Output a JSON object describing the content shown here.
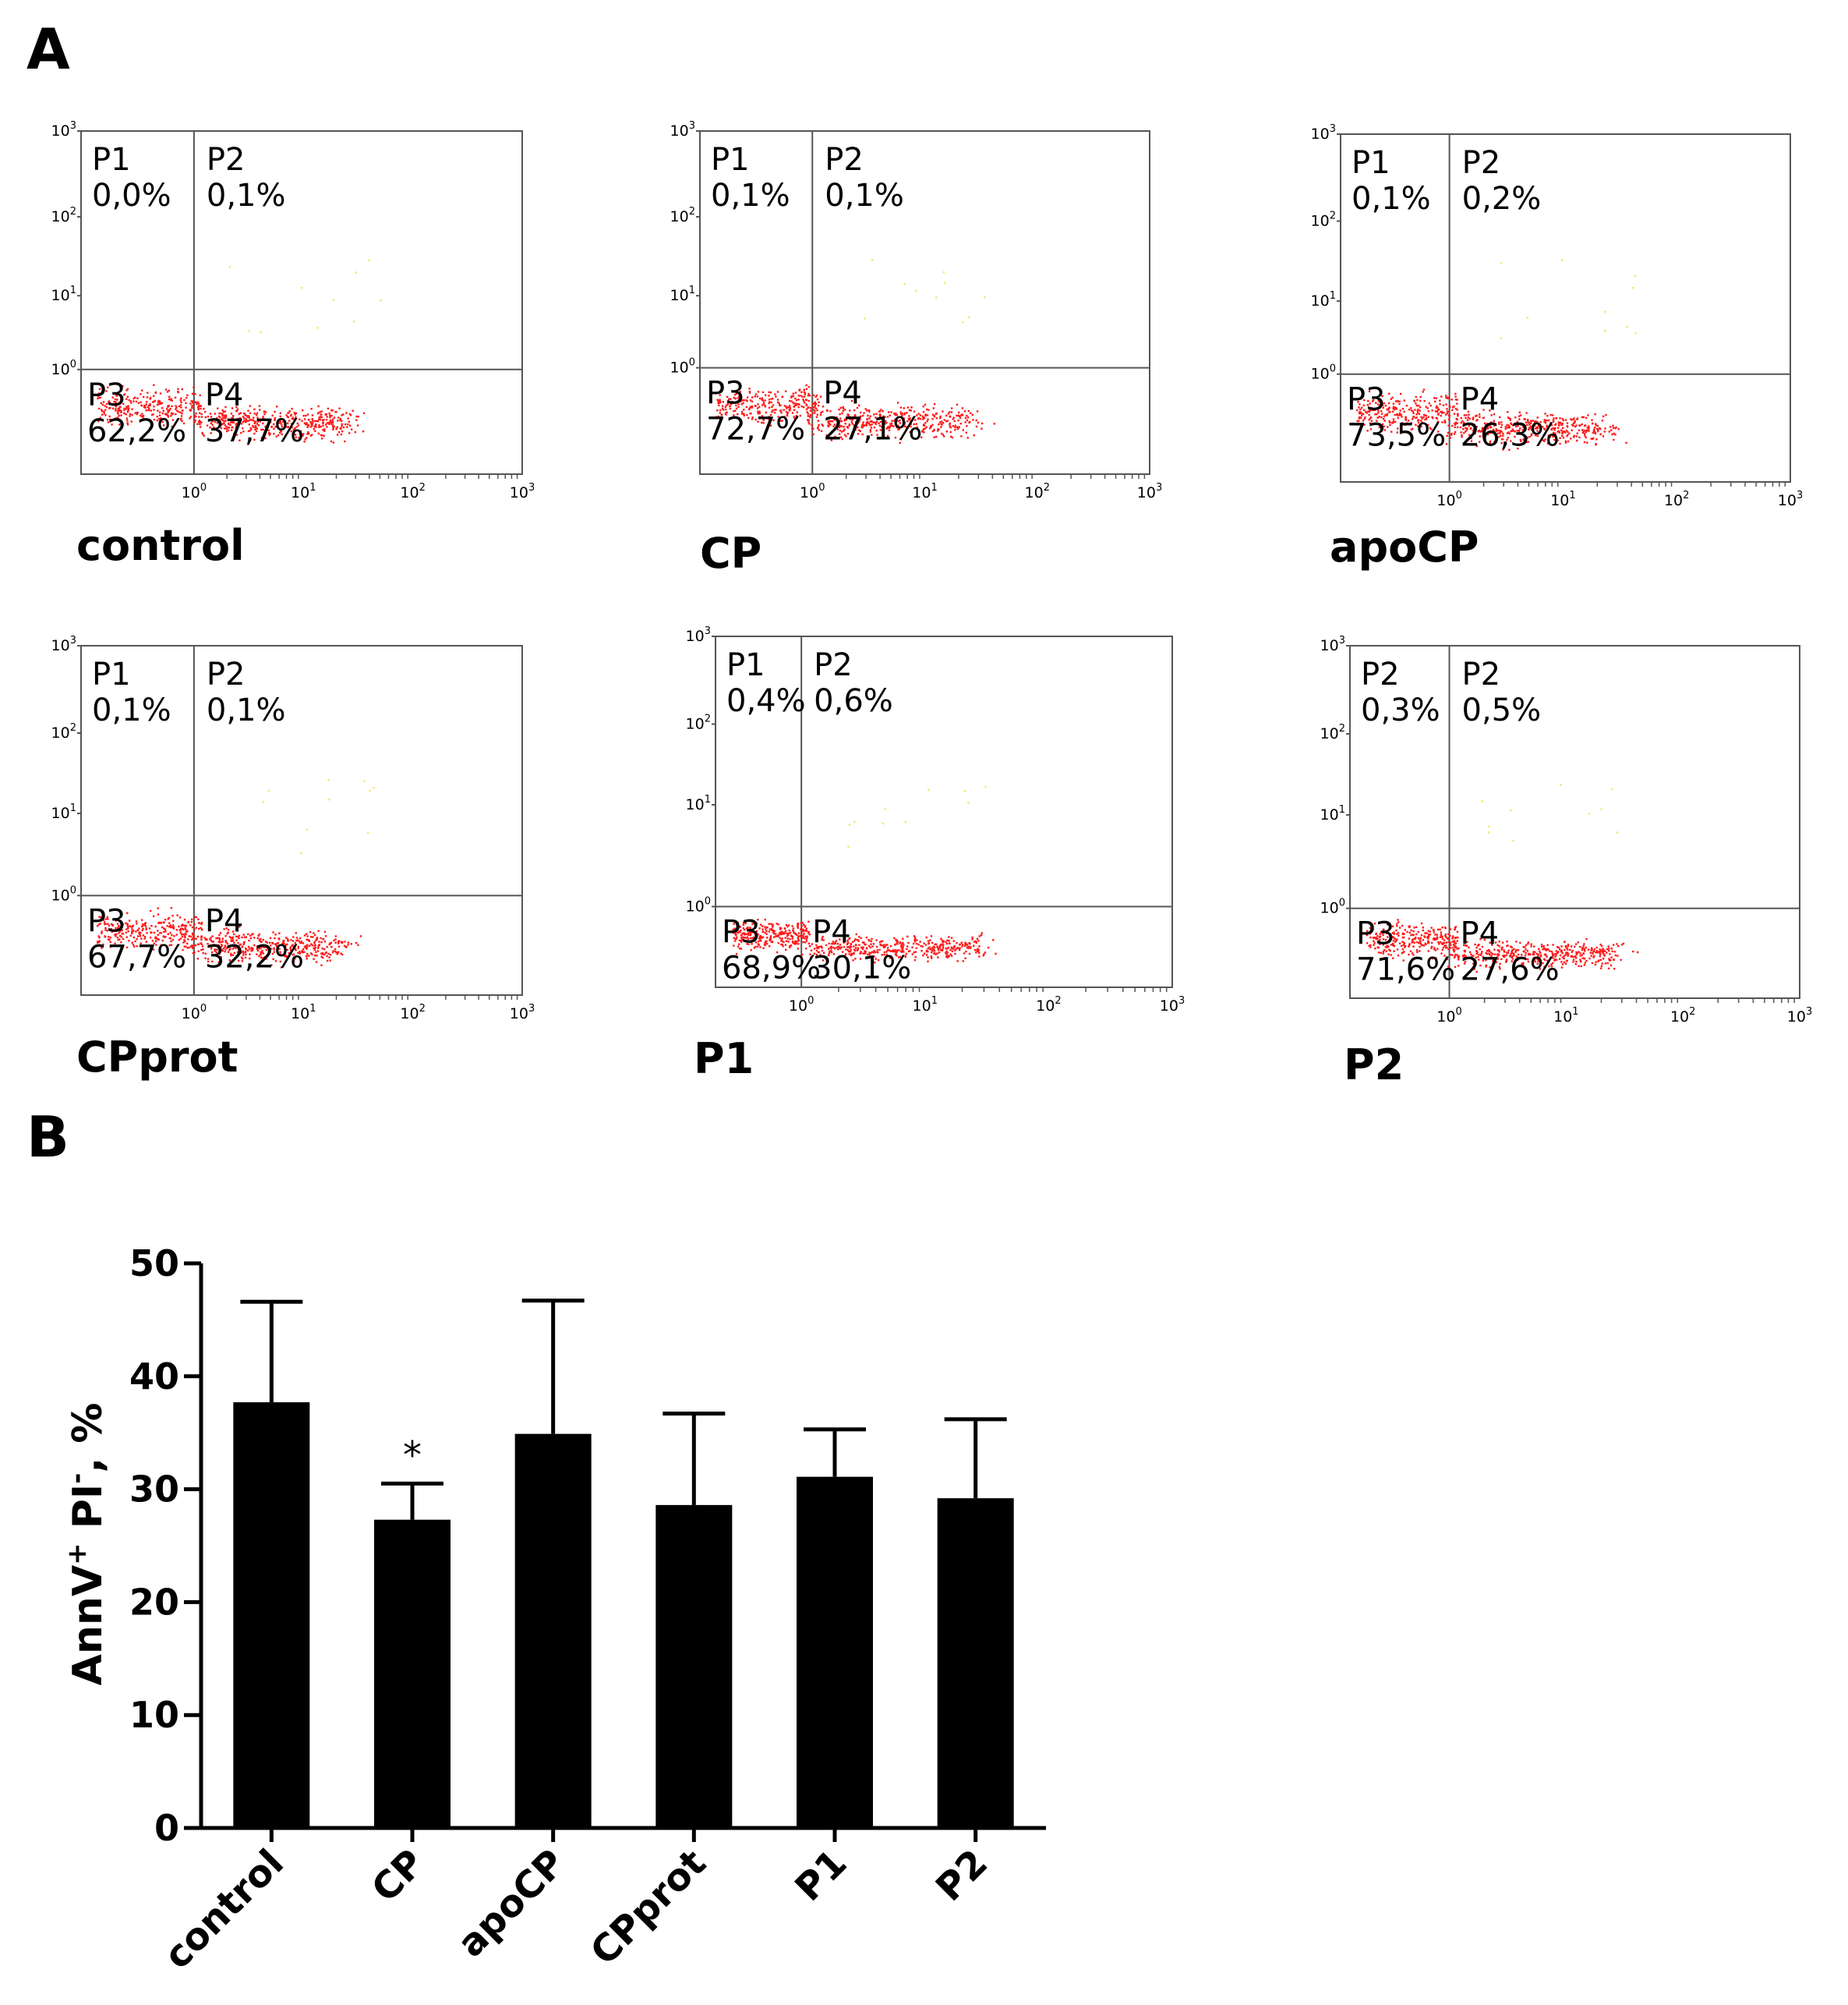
{
  "panel_labels": {
    "a": "A",
    "b": "B"
  },
  "chart_data": [
    {
      "type": "scatter",
      "panels": [
        {
          "caption": "control",
          "quadrants": [
            {
              "label": "P1",
              "value": "0,0%"
            },
            {
              "label": "P2",
              "value": "0,1%"
            },
            {
              "label": "P3",
              "value": "62,2%"
            },
            {
              "label": "P4",
              "value": "37,7%"
            }
          ]
        },
        {
          "caption": "CP",
          "quadrants": [
            {
              "label": "P1",
              "value": "0,1%"
            },
            {
              "label": "P2",
              "value": "0,1%"
            },
            {
              "label": "P3",
              "value": "72,7%"
            },
            {
              "label": "P4",
              "value": "27,1%"
            }
          ]
        },
        {
          "caption": "apoCP",
          "quadrants": [
            {
              "label": "P1",
              "value": "0,1%"
            },
            {
              "label": "P2",
              "value": "0,2%"
            },
            {
              "label": "P3",
              "value": "73,5%"
            },
            {
              "label": "P4",
              "value": "26,3%"
            }
          ]
        },
        {
          "caption": "CPprot",
          "quadrants": [
            {
              "label": "P1",
              "value": "0,1%"
            },
            {
              "label": "P2",
              "value": "0,1%"
            },
            {
              "label": "P3",
              "value": "67,7%"
            },
            {
              "label": "P4",
              "value": "32,2%"
            }
          ]
        },
        {
          "caption": "P1",
          "quadrants": [
            {
              "label": "P1",
              "value": "0,4%"
            },
            {
              "label": "P2",
              "value": "0,6%"
            },
            {
              "label": "P3",
              "value": "68,9%"
            },
            {
              "label": "P4",
              "value": "30,1%"
            }
          ]
        },
        {
          "caption": "P2",
          "quadrants": [
            {
              "label": "P2",
              "value": "0,3%"
            },
            {
              "label": "P2",
              "value": "0,5%"
            },
            {
              "label": "P3",
              "value": "71,6%"
            },
            {
              "label": "P4",
              "value": "27,6%"
            }
          ]
        }
      ],
      "axis": {
        "scale": "log",
        "range": [
          0.1,
          1000
        ],
        "tick_base": "10",
        "tick_exps": [
          "0",
          "1",
          "2",
          "3"
        ]
      },
      "colors": {
        "dots": "#ff1a1a",
        "sparse": "#f5e663"
      }
    },
    {
      "type": "bar",
      "categories": [
        "control",
        "CP",
        "apoCP",
        "CPprot",
        "P1",
        "P2"
      ],
      "values": [
        37.7,
        27.3,
        34.9,
        28.6,
        31.1,
        29.2
      ],
      "errors": [
        8.9,
        3.2,
        11.8,
        8.1,
        4.2,
        7.0
      ],
      "ylim": [
        0,
        50
      ],
      "yticks": [
        "0",
        "10",
        "20",
        "30",
        "40",
        "50"
      ],
      "ylabel": {
        "base1": "AnnV",
        "sup1": "+",
        "base2": " PI",
        "sup2": "-",
        "tail": ", %"
      },
      "annotations": [
        {
          "category": "CP",
          "text": "*"
        }
      ],
      "grid": false,
      "colors": {
        "bars": "#000000"
      }
    }
  ]
}
